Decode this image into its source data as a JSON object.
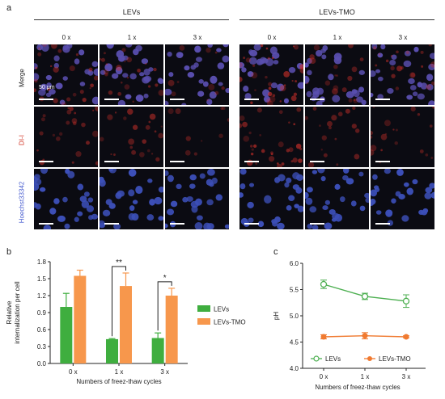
{
  "panels": {
    "a": {
      "letter": "a",
      "groups": [
        {
          "title": "LEVs",
          "cols": [
            "0 x",
            "1 x",
            "3 x"
          ]
        },
        {
          "title": "LEVs-TMO",
          "cols": [
            "0 x",
            "1 x",
            "3 x"
          ]
        }
      ],
      "rows": [
        {
          "label": "Merge",
          "color": "#222222",
          "type": "merge"
        },
        {
          "label": "DI-I",
          "color": "#d03020",
          "type": "red"
        },
        {
          "label": "Hoechst33342",
          "color": "#4a5fd0",
          "type": "blue"
        }
      ],
      "scale_label": "50 μm",
      "intensity": [
        [
          0.6,
          0.55,
          0.25
        ],
        [
          0.8,
          0.45,
          0.5
        ]
      ]
    },
    "b": {
      "letter": "b"
    },
    "c": {
      "letter": "c"
    }
  },
  "chart_data": [
    {
      "type": "bar",
      "panel": "b",
      "categories": [
        "0 x",
        "1 x",
        "3 x"
      ],
      "series": [
        {
          "name": "LEVs",
          "values": [
            1.0,
            0.43,
            0.45
          ],
          "errors": [
            0.24,
            0.01,
            0.09
          ],
          "color": "#3fae3f"
        },
        {
          "name": "LEVs-TMO",
          "values": [
            1.55,
            1.37,
            1.2
          ],
          "errors": [
            0.1,
            0.23,
            0.13
          ],
          "color": "#f7974c"
        }
      ],
      "xlabel": "Numbers of freez-thaw cycles",
      "ylabel": "Relative internalization per cell",
      "ylabel_lines": [
        "Relative",
        "internalization per cell"
      ],
      "ylim": [
        0,
        1.8
      ],
      "yticks": [
        "0.0",
        "0.3",
        "0.6",
        "0.9",
        "1.2",
        "1.5",
        "1.8"
      ],
      "annotations": [
        {
          "category": "1 x",
          "text": "**"
        },
        {
          "category": "3 x",
          "text": "*"
        }
      ],
      "legend": "right"
    },
    {
      "type": "line",
      "panel": "c",
      "x": [
        "0 x",
        "1 x",
        "3 x"
      ],
      "series": [
        {
          "name": "LEVs",
          "values": [
            5.6,
            5.37,
            5.28
          ],
          "errors": [
            0.08,
            0.06,
            0.12
          ],
          "color": "#4caf50",
          "marker": "open-circle"
        },
        {
          "name": "LEVs-TMO",
          "values": [
            4.6,
            4.62,
            4.6
          ],
          "errors": [
            0.04,
            0.06,
            0.02
          ],
          "color": "#f07a30",
          "marker": "filled-circle"
        }
      ],
      "xlabel": "Numbers of freez-thaw cycles",
      "ylabel": "pH",
      "ylim": [
        4.0,
        6.0
      ],
      "yticks": [
        "4.0",
        "4.5",
        "5.0",
        "5.5",
        "6.0"
      ],
      "legend": "bottom"
    }
  ]
}
